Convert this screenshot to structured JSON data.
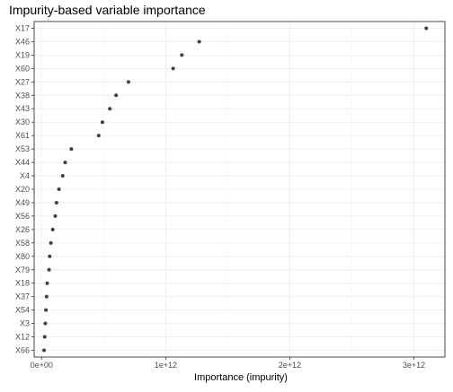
{
  "chart_data": {
    "type": "scatter",
    "title": "Impurity-based variable importance",
    "xlabel": "Importance (impurity)",
    "ylabel": "",
    "xlim": [
      -60000000000.0,
      3250000000000.0
    ],
    "x_ticks": [
      0,
      1000000000000.0,
      2000000000000.0,
      3000000000000.0
    ],
    "x_tick_labels": [
      "0e+00",
      "1e+12",
      "2e+12",
      "3e+12"
    ],
    "grid": true,
    "point_color": "#404040",
    "categories": [
      "X17",
      "X46",
      "X19",
      "X60",
      "X27",
      "X38",
      "X43",
      "X30",
      "X61",
      "X53",
      "X44",
      "X4",
      "X20",
      "X49",
      "X56",
      "X26",
      "X58",
      "X80",
      "X79",
      "X18",
      "X37",
      "X54",
      "X3",
      "X12",
      "X66"
    ],
    "values": [
      3100000000000.0,
      1270000000000.0,
      1130000000000.0,
      1060000000000.0,
      700000000000.0,
      600000000000.0,
      550000000000.0,
      490000000000.0,
      460000000000.0,
      240000000000.0,
      190000000000.0,
      170000000000.0,
      140000000000.0,
      120000000000.0,
      110000000000.0,
      90000000000.0,
      75000000000.0,
      65000000000.0,
      60000000000.0,
      45000000000.0,
      40000000000.0,
      35000000000.0,
      30000000000.0,
      25000000000.0,
      20000000000.0
    ]
  }
}
